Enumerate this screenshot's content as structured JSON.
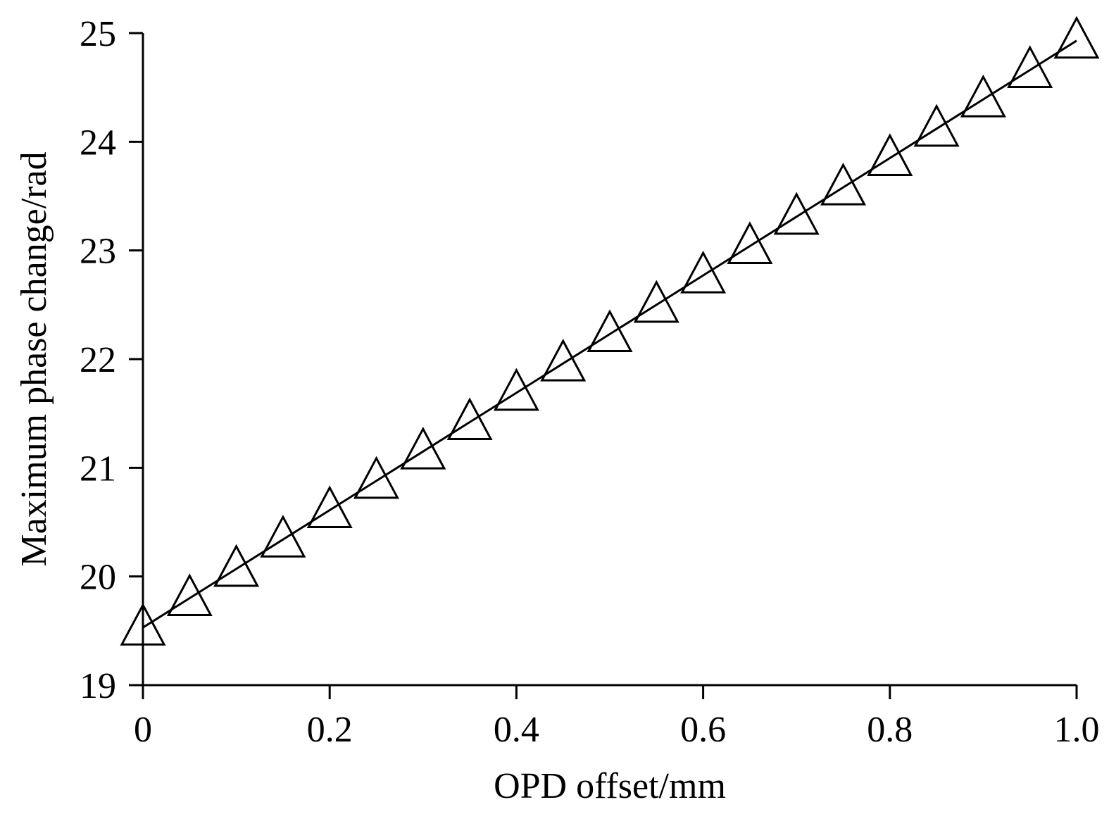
{
  "chart_data": {
    "type": "line",
    "title": "",
    "xlabel": "OPD offset/mm",
    "ylabel": "Maximum phase change/rad",
    "xlim": [
      0,
      1.0
    ],
    "ylim": [
      19,
      25
    ],
    "x_ticks": [
      0,
      0.2,
      0.4,
      0.6,
      0.8,
      1.0
    ],
    "x_tick_labels": [
      "0",
      "0.2",
      "0.4",
      "0.6",
      "0.8",
      "1.0"
    ],
    "y_ticks": [
      19,
      20,
      21,
      22,
      23,
      24,
      25
    ],
    "y_tick_labels": [
      "19",
      "20",
      "21",
      "22",
      "23",
      "24",
      "25"
    ],
    "grid": false,
    "legend": "none",
    "series": [
      {
        "marker": "triangle-open",
        "color": "#000000",
        "x": [
          0,
          0.05,
          0.1,
          0.15,
          0.2,
          0.25,
          0.3,
          0.35,
          0.4,
          0.45,
          0.5,
          0.55,
          0.6,
          0.65,
          0.7,
          0.75,
          0.8,
          0.85,
          0.9,
          0.95,
          1.0
        ],
        "y": [
          19.53,
          19.8,
          20.07,
          20.34,
          20.61,
          20.88,
          21.15,
          21.42,
          21.69,
          21.96,
          22.23,
          22.5,
          22.77,
          23.04,
          23.31,
          23.58,
          23.85,
          24.12,
          24.39,
          24.66,
          24.93
        ]
      }
    ]
  }
}
